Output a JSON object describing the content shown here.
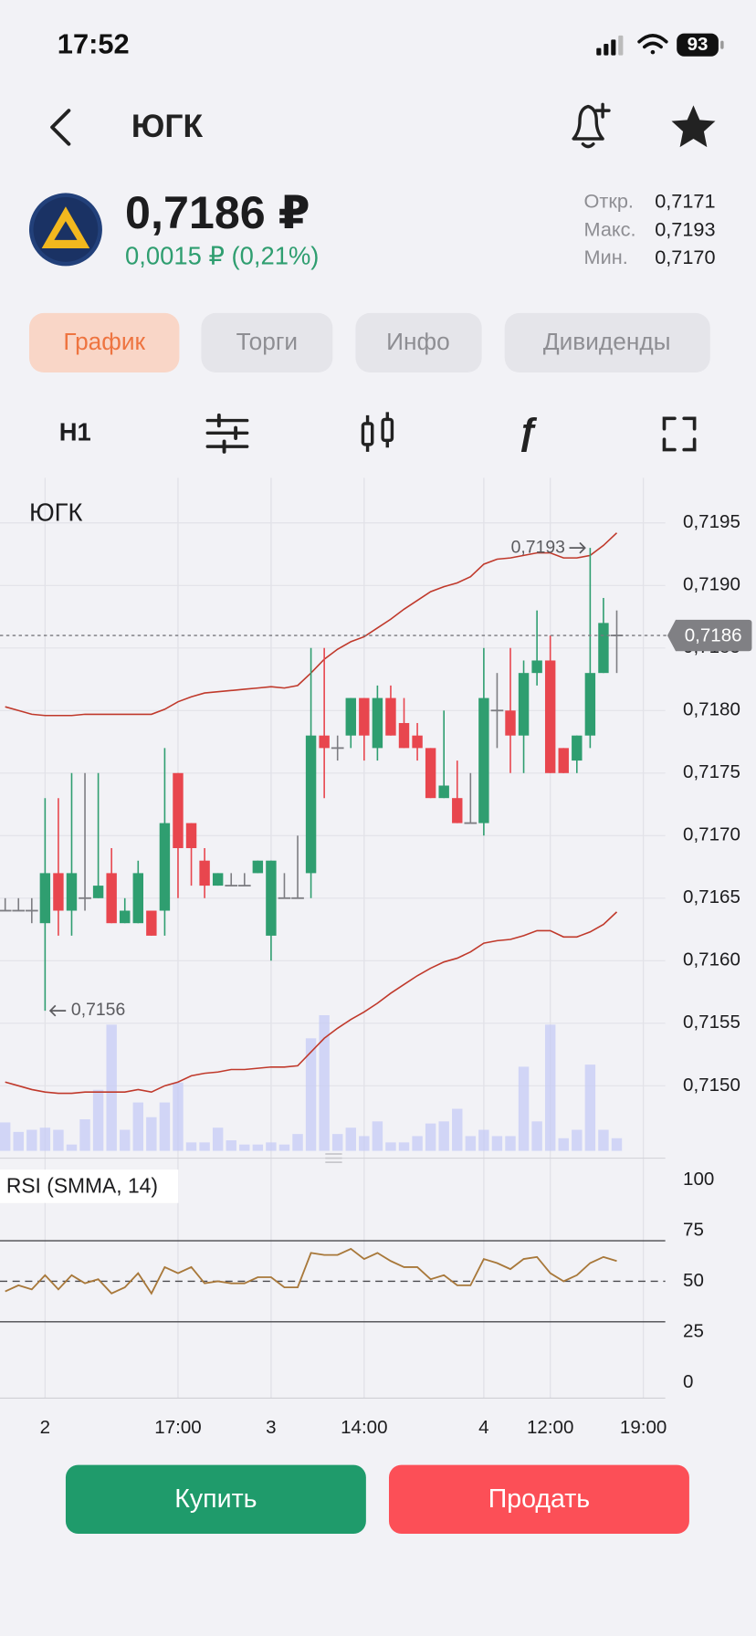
{
  "status_bar": {
    "time": "17:52",
    "battery": "93"
  },
  "header": {
    "title": "ЮГК"
  },
  "quote": {
    "price": "0,7186 ₽",
    "change": "0,0015 ₽ (0,21%)",
    "stats": [
      {
        "label": "Откр.",
        "value": "0,7171"
      },
      {
        "label": "Макс.",
        "value": "0,7193"
      },
      {
        "label": "Мин.",
        "value": "0,7170"
      }
    ]
  },
  "tabs": {
    "items": [
      "График",
      "Торги",
      "Инфо",
      "Дивиденды"
    ],
    "active": 0
  },
  "toolbar": {
    "interval": "H1"
  },
  "chart_data": {
    "type": "candlestick",
    "title": "ЮГК",
    "x": [
      0,
      1,
      2,
      3,
      4,
      5,
      6,
      7,
      8,
      9,
      10,
      11,
      12,
      13,
      14,
      15,
      16,
      17,
      18,
      19,
      20,
      21,
      22,
      23,
      24,
      25,
      26,
      27,
      28,
      29,
      30,
      31,
      32,
      33,
      34,
      35,
      36,
      37,
      38,
      39,
      40,
      41,
      42,
      43,
      44,
      45,
      46
    ],
    "open": [
      0.7164,
      0.7164,
      0.7164,
      0.7163,
      0.7167,
      0.7164,
      0.7165,
      0.7165,
      0.7167,
      0.7163,
      0.7163,
      0.7164,
      0.7164,
      0.7175,
      0.7171,
      0.7168,
      0.7166,
      0.7166,
      0.7166,
      0.7167,
      0.7162,
      0.7165,
      0.7165,
      0.7167,
      0.7178,
      0.7177,
      0.7178,
      0.7181,
      0.7177,
      0.7181,
      0.7179,
      0.7178,
      0.7177,
      0.7173,
      0.7173,
      0.7171,
      0.7171,
      0.718,
      0.718,
      0.7178,
      0.7183,
      0.7184,
      0.7177,
      0.7176,
      0.7178,
      0.7183,
      0.7186
    ],
    "high": [
      0.7165,
      0.7165,
      0.7165,
      0.7173,
      0.7173,
      0.7175,
      0.7175,
      0.7175,
      0.7169,
      0.7165,
      0.7168,
      0.7164,
      0.7177,
      0.7175,
      0.7171,
      0.7169,
      0.7167,
      0.7167,
      0.7167,
      0.7168,
      0.7168,
      0.7167,
      0.717,
      0.7185,
      0.7185,
      0.7178,
      0.7181,
      0.7181,
      0.7182,
      0.7182,
      0.7181,
      0.7179,
      0.7177,
      0.718,
      0.7176,
      0.7175,
      0.7185,
      0.7183,
      0.7185,
      0.7184,
      0.7188,
      0.7186,
      0.7177,
      0.7178,
      0.7193,
      0.7189,
      0.7188
    ],
    "low": [
      0.7164,
      0.7164,
      0.7163,
      0.7156,
      0.7162,
      0.7162,
      0.7164,
      0.7165,
      0.7163,
      0.7163,
      0.7163,
      0.7162,
      0.7162,
      0.7165,
      0.7166,
      0.7165,
      0.7166,
      0.7166,
      0.7166,
      0.7167,
      0.716,
      0.7165,
      0.7165,
      0.7165,
      0.7173,
      0.7176,
      0.7177,
      0.7176,
      0.7176,
      0.7178,
      0.7177,
      0.7176,
      0.7173,
      0.7173,
      0.7171,
      0.7171,
      0.717,
      0.7177,
      0.7175,
      0.7175,
      0.7182,
      0.7175,
      0.7175,
      0.7175,
      0.7177,
      0.7183,
      0.7183
    ],
    "close": [
      0.7164,
      0.7164,
      0.7164,
      0.7167,
      0.7164,
      0.7167,
      0.7165,
      0.7166,
      0.7163,
      0.7164,
      0.7167,
      0.7162,
      0.7171,
      0.7169,
      0.7169,
      0.7166,
      0.7167,
      0.7166,
      0.7166,
      0.7168,
      0.7168,
      0.7165,
      0.7165,
      0.7178,
      0.7177,
      0.7177,
      0.7181,
      0.7178,
      0.7181,
      0.7178,
      0.7177,
      0.7177,
      0.7173,
      0.7174,
      0.7171,
      0.7171,
      0.7181,
      0.718,
      0.7178,
      0.7183,
      0.7184,
      0.7175,
      0.7175,
      0.7178,
      0.7183,
      0.7187,
      0.7186
    ],
    "colors": {
      "up": "#2f9e70",
      "down": "#e8464e",
      "flat": "#7d7d82"
    },
    "bands": {
      "color": "#c0392b",
      "upper": [
        0.71803,
        0.718,
        0.71797,
        0.71796,
        0.71796,
        0.71796,
        0.71797,
        0.71797,
        0.71797,
        0.71797,
        0.71797,
        0.71797,
        0.71801,
        0.71807,
        0.71811,
        0.71814,
        0.71815,
        0.71816,
        0.71817,
        0.71818,
        0.71819,
        0.71818,
        0.7182,
        0.7183,
        0.71841,
        0.71849,
        0.71855,
        0.71859,
        0.71866,
        0.71873,
        0.71881,
        0.71888,
        0.71895,
        0.71899,
        0.71902,
        0.71907,
        0.71917,
        0.71921,
        0.71922,
        0.71924,
        0.71926,
        0.71926,
        0.71922,
        0.71922,
        0.71924,
        0.71932,
        0.71942
      ],
      "lower": [
        0.71503,
        0.715,
        0.71497,
        0.71495,
        0.71494,
        0.71494,
        0.71495,
        0.71495,
        0.71495,
        0.71495,
        0.71497,
        0.71495,
        0.715,
        0.71503,
        0.71508,
        0.7151,
        0.71511,
        0.71513,
        0.71513,
        0.71514,
        0.71515,
        0.71515,
        0.71516,
        0.71527,
        0.71538,
        0.71546,
        0.71553,
        0.71559,
        0.71566,
        0.71574,
        0.71581,
        0.71588,
        0.71594,
        0.71599,
        0.71602,
        0.71607,
        0.71614,
        0.71616,
        0.71617,
        0.7162,
        0.71624,
        0.71624,
        0.71619,
        0.71619,
        0.71623,
        0.71629,
        0.71639
      ]
    },
    "volume": {
      "color": "#c5cbf6",
      "values": [
        27,
        18,
        20,
        22,
        20,
        6,
        30,
        58,
        120,
        20,
        46,
        32,
        46,
        65,
        8,
        8,
        22,
        10,
        6,
        6,
        8,
        6,
        16,
        107,
        129,
        16,
        22,
        14,
        28,
        8,
        8,
        14,
        26,
        28,
        40,
        14,
        20,
        14,
        14,
        80,
        28,
        120,
        12,
        20,
        82,
        20,
        12
      ]
    },
    "last_price": {
      "value": 0.7186,
      "label": "0,7186"
    },
    "annotations": [
      {
        "x": 44,
        "value": 0.7193,
        "label": "0,7193"
      },
      {
        "x": 3,
        "value": 0.7156,
        "label": "0,7156"
      }
    ],
    "xlim": [
      -0.39,
      49.65
    ],
    "xticks": [
      {
        "value": 3,
        "label": "2"
      },
      {
        "value": 13,
        "label": "17:00"
      },
      {
        "value": 20,
        "label": "3"
      },
      {
        "value": 27,
        "label": "14:00"
      },
      {
        "value": 36,
        "label": "4"
      },
      {
        "value": 41,
        "label": "12:00"
      },
      {
        "value": 48,
        "label": "19:00"
      }
    ],
    "ylim": [
      0.71448,
      0.71986
    ],
    "yticks": [
      {
        "value": 0.715,
        "label": "0,7150"
      },
      {
        "value": 0.7155,
        "label": "0,7155"
      },
      {
        "value": 0.716,
        "label": "0,7160"
      },
      {
        "value": 0.7165,
        "label": "0,7165"
      },
      {
        "value": 0.717,
        "label": "0,7170"
      },
      {
        "value": 0.7175,
        "label": "0,7175"
      },
      {
        "value": 0.718,
        "label": "0,7180"
      },
      {
        "value": 0.7185,
        "label": "0,7185"
      },
      {
        "value": 0.719,
        "label": "0,7190"
      },
      {
        "value": 0.7195,
        "label": "0,7195"
      }
    ],
    "grid": true,
    "rsi": {
      "title": "RSI (SMMA, 14)",
      "color": "#a8783a",
      "values": [
        45,
        48,
        46,
        53,
        46,
        53,
        49,
        51,
        44,
        47,
        54,
        44,
        57,
        54,
        57,
        49,
        50,
        49,
        49,
        52,
        52,
        47,
        47,
        64,
        63,
        63,
        66,
        61,
        64,
        60,
        57,
        57,
        51,
        53,
        48,
        48,
        61,
        59,
        56,
        61,
        62,
        54,
        50,
        53,
        59,
        62,
        60
      ],
      "ylim": [
        -7.7,
        107.2
      ],
      "yticks": [
        0,
        25,
        50,
        75,
        100
      ],
      "levels": [
        30,
        50,
        70
      ]
    }
  },
  "buttons": {
    "buy": "Купить",
    "sell": "Продать"
  }
}
